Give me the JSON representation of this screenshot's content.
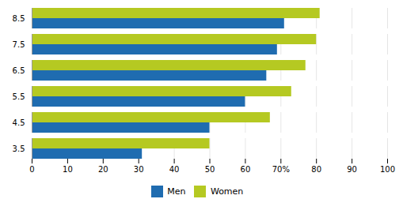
{
  "chart_data": {
    "type": "bar",
    "orientation": "horizontal",
    "categories": [
      "3.5",
      "4.5",
      "5.5",
      "6.5",
      "7.5",
      "8.5"
    ],
    "series": [
      {
        "name": "Men",
        "color": "#1f6cb0",
        "values": [
          31,
          50,
          60,
          66,
          69,
          71
        ]
      },
      {
        "name": "Women",
        "color": "#b5c922",
        "values": [
          50,
          67,
          73,
          77,
          80,
          81
        ]
      }
    ],
    "xlim": [
      0,
      100
    ],
    "xticks": [
      0,
      10,
      20,
      30,
      40,
      50,
      60,
      {
        "value": 70,
        "label": "70%"
      },
      80,
      90,
      100
    ],
    "grid": true,
    "legend": "bottom"
  }
}
